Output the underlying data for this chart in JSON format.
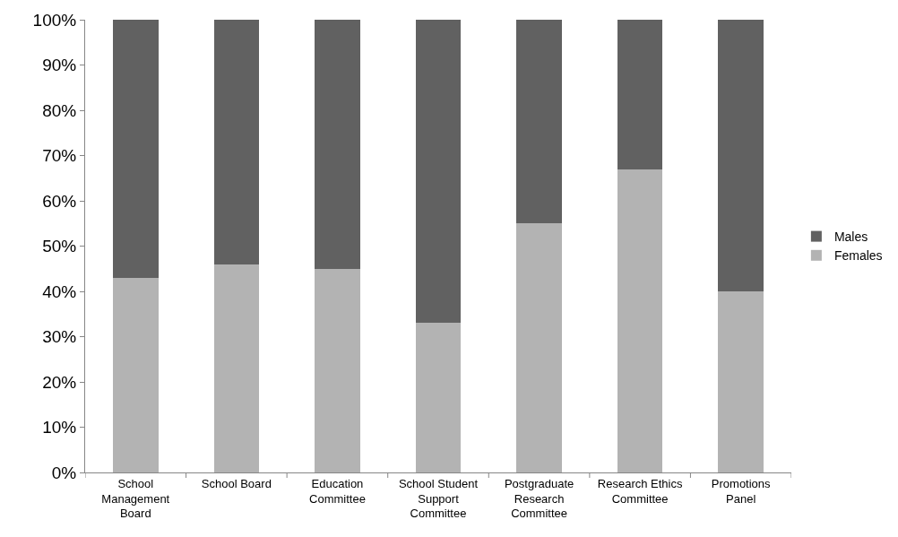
{
  "chart_data": {
    "type": "bar",
    "stacked": true,
    "categories": [
      "School Management Board",
      "School Board",
      "Education Committee",
      "School Student Support Committee",
      "Postgraduate Research Committee",
      "Research Ethics Committee",
      "Promotions Panel"
    ],
    "series": [
      {
        "name": "Females",
        "color": "#b3b3b3",
        "values": [
          43,
          46,
          45,
          33,
          55,
          67,
          40
        ]
      },
      {
        "name": "Males",
        "color": "#616161",
        "values": [
          57,
          54,
          55,
          67,
          45,
          33,
          60
        ]
      }
    ],
    "ylim": [
      0,
      100
    ],
    "yticks": [
      {
        "value": 0,
        "label": "0%"
      },
      {
        "value": 10,
        "label": "10%"
      },
      {
        "value": 20,
        "label": "20%"
      },
      {
        "value": 30,
        "label": "30%"
      },
      {
        "value": 40,
        "label": "40%"
      },
      {
        "value": 50,
        "label": "50%"
      },
      {
        "value": 60,
        "label": "60%"
      },
      {
        "value": 70,
        "label": "70%"
      },
      {
        "value": 80,
        "label": "80%"
      },
      {
        "value": 90,
        "label": "90%"
      },
      {
        "value": 100,
        "label": "100%"
      }
    ],
    "legend": "right"
  }
}
